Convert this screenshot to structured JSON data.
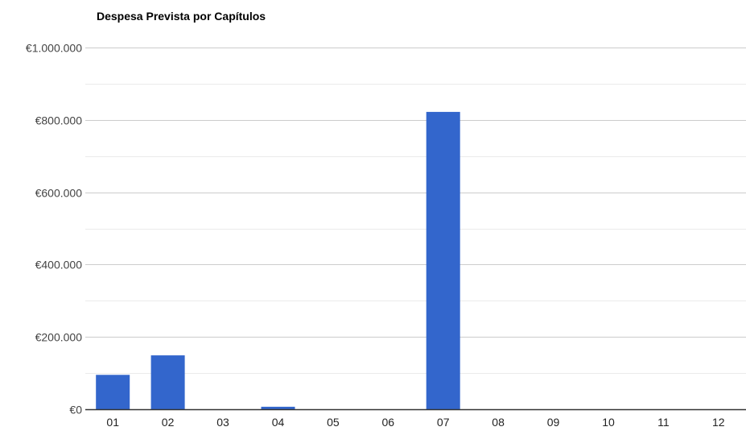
{
  "chart_data": {
    "type": "bar",
    "title": "Despesa Prevista por Capítulos",
    "xlabel": "",
    "ylabel": "",
    "categories": [
      "01",
      "02",
      "03",
      "04",
      "05",
      "06",
      "07",
      "08",
      "09",
      "10",
      "11",
      "12"
    ],
    "values": [
      95000,
      149000,
      0,
      7000,
      0,
      0,
      822000,
      0,
      0,
      0,
      0,
      0
    ],
    "ylim": [
      0,
      1000000
    ],
    "yticks": [
      0,
      200000,
      400000,
      600000,
      800000,
      1000000
    ],
    "ytick_labels": [
      "€0",
      "€200.000",
      "€400.000",
      "€600.000",
      "€800.000",
      "€1.000.000"
    ],
    "grid": true,
    "legend": "none",
    "colors": {
      "bar": "#3366cc",
      "gridline": "#cccccc",
      "minor_gridline": "#ebebeb",
      "baseline": "#333333"
    }
  }
}
